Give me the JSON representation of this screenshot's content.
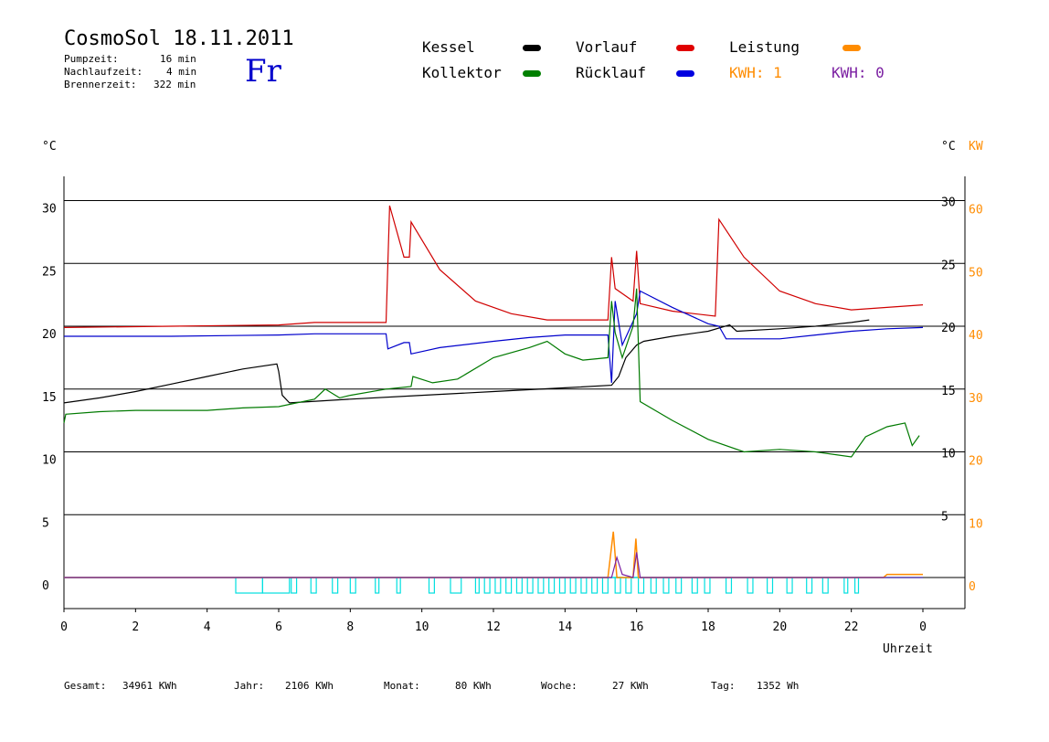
{
  "header": {
    "title": "CosmoSol 18.11.2011",
    "day": "Fr",
    "stats": [
      {
        "label": "Pumpzeit:",
        "value": "16 min"
      },
      {
        "label": "Nachlaufzeit:",
        "value": "4 min"
      },
      {
        "label": "Brennerzeit:",
        "value": "322 min"
      }
    ]
  },
  "legend": {
    "kessel": "Kessel",
    "vorlauf": "Vorlauf",
    "leistung": "Leistung",
    "kollektor": "Kollektor",
    "ruecklauf": "Rücklauf",
    "kwh1": "KWH: 1",
    "kwh2": "KWH: 0"
  },
  "colors": {
    "kessel": "#000000",
    "vorlauf": "#d00000",
    "ruecklauf": "#0000cc",
    "kollektor": "#007a00",
    "leistung": "#ff8c00",
    "kwh2": "#7b1fa2",
    "pump": "#00e0e0",
    "day": "#0000cc"
  },
  "footer": [
    {
      "label": "Gesamt:",
      "value": "34961 KWh"
    },
    {
      "label": "Jahr:",
      "value": "2106 KWh"
    },
    {
      "label": "Monat:",
      "value": "80 KWh"
    },
    {
      "label": "Woche:",
      "value": "27 KWh"
    },
    {
      "label": "Tag:",
      "value": "1352 Wh"
    }
  ],
  "chart_data": {
    "type": "line",
    "xlabel": "Uhrzeit",
    "ylabel_left": "°C",
    "ylabel_right": "°C",
    "ylabel_right2": "KW",
    "xlim": [
      0,
      24
    ],
    "ylim": [
      -2.5,
      32
    ],
    "x_ticks": [
      "0",
      "2",
      "4",
      "6",
      "8",
      "10",
      "12",
      "14",
      "16",
      "18",
      "20",
      "22",
      "0"
    ],
    "y_ticks_left": [
      "0",
      "5",
      "10",
      "15",
      "20",
      "25",
      "30"
    ],
    "y_ticks_right": [
      "5",
      "10",
      "15",
      "20",
      "25",
      "30"
    ],
    "y_ticks_kw": [
      "0",
      "10",
      "20",
      "30",
      "40",
      "50",
      "60"
    ],
    "grid_y": [
      0,
      5,
      10,
      15,
      20,
      25,
      30
    ],
    "series": [
      {
        "name": "Kessel",
        "color": "#000000",
        "points": [
          [
            0,
            13.9
          ],
          [
            1,
            14.3
          ],
          [
            2,
            14.8
          ],
          [
            3,
            15.4
          ],
          [
            4,
            16.0
          ],
          [
            5,
            16.6
          ],
          [
            5.95,
            17.0
          ],
          [
            6,
            16.4
          ],
          [
            6.1,
            14.5
          ],
          [
            6.3,
            13.9
          ],
          [
            8,
            14.2
          ],
          [
            10,
            14.5
          ],
          [
            12,
            14.8
          ],
          [
            14,
            15.1
          ],
          [
            15.3,
            15.3
          ],
          [
            15.5,
            16.0
          ],
          [
            15.7,
            17.5
          ],
          [
            16,
            18.5
          ],
          [
            16.2,
            18.8
          ],
          [
            17,
            19.2
          ],
          [
            18,
            19.6
          ],
          [
            18.6,
            20.1
          ],
          [
            18.8,
            19.6
          ],
          [
            20,
            19.8
          ],
          [
            21,
            20.0
          ],
          [
            22,
            20.3
          ],
          [
            22.5,
            20.5
          ]
        ]
      },
      {
        "name": "Vorlauf",
        "color": "#d00000",
        "points": [
          [
            0,
            19.9
          ],
          [
            3,
            20.0
          ],
          [
            6,
            20.1
          ],
          [
            7,
            20.3
          ],
          [
            9.0,
            20.3
          ],
          [
            9.1,
            29.6
          ],
          [
            9.5,
            25.5
          ],
          [
            9.65,
            25.5
          ],
          [
            9.7,
            28.3
          ],
          [
            10.5,
            24.5
          ],
          [
            11.5,
            22.0
          ],
          [
            12.5,
            21.0
          ],
          [
            13.5,
            20.5
          ],
          [
            15.2,
            20.5
          ],
          [
            15.3,
            25.5
          ],
          [
            15.4,
            23.0
          ],
          [
            15.9,
            22.0
          ],
          [
            16.0,
            26.0
          ],
          [
            16.1,
            21.8
          ],
          [
            17,
            21.2
          ],
          [
            18.2,
            20.8
          ],
          [
            18.3,
            28.5
          ],
          [
            19,
            25.5
          ],
          [
            20,
            22.8
          ],
          [
            21,
            21.8
          ],
          [
            22,
            21.3
          ],
          [
            23,
            21.5
          ],
          [
            24,
            21.7
          ]
        ]
      },
      {
        "name": "Rücklauf",
        "color": "#0000cc",
        "points": [
          [
            0,
            19.2
          ],
          [
            3,
            19.2
          ],
          [
            6,
            19.3
          ],
          [
            7,
            19.4
          ],
          [
            9.0,
            19.4
          ],
          [
            9.05,
            18.2
          ],
          [
            9.5,
            18.7
          ],
          [
            9.65,
            18.7
          ],
          [
            9.7,
            17.8
          ],
          [
            10.5,
            18.3
          ],
          [
            12,
            18.8
          ],
          [
            13,
            19.1
          ],
          [
            14,
            19.3
          ],
          [
            15.2,
            19.3
          ],
          [
            15.3,
            15.5
          ],
          [
            15.4,
            22.0
          ],
          [
            15.6,
            18.5
          ],
          [
            16.0,
            21.0
          ],
          [
            16.1,
            22.8
          ],
          [
            17,
            21.5
          ],
          [
            18,
            20.2
          ],
          [
            18.3,
            20.0
          ],
          [
            18.5,
            19.0
          ],
          [
            20,
            19.0
          ],
          [
            21,
            19.3
          ],
          [
            22,
            19.6
          ],
          [
            23,
            19.8
          ],
          [
            24,
            19.9
          ]
        ]
      },
      {
        "name": "Kollektor",
        "color": "#007a00",
        "points": [
          [
            0,
            12.3
          ],
          [
            0.05,
            13.0
          ],
          [
            1,
            13.2
          ],
          [
            2,
            13.3
          ],
          [
            3,
            13.3
          ],
          [
            4,
            13.3
          ],
          [
            5,
            13.5
          ],
          [
            6,
            13.6
          ],
          [
            7,
            14.2
          ],
          [
            7.3,
            15.0
          ],
          [
            7.7,
            14.3
          ],
          [
            8,
            14.5
          ],
          [
            9,
            15.0
          ],
          [
            9.7,
            15.2
          ],
          [
            9.75,
            16.0
          ],
          [
            10.3,
            15.5
          ],
          [
            11,
            15.8
          ],
          [
            12,
            17.5
          ],
          [
            13,
            18.3
          ],
          [
            13.5,
            18.8
          ],
          [
            14,
            17.8
          ],
          [
            14.5,
            17.3
          ],
          [
            15.2,
            17.5
          ],
          [
            15.3,
            22.0
          ],
          [
            15.4,
            19.5
          ],
          [
            15.6,
            17.5
          ],
          [
            15.9,
            20.0
          ],
          [
            16.0,
            23.0
          ],
          [
            16.1,
            14.0
          ],
          [
            17,
            12.5
          ],
          [
            18,
            11.0
          ],
          [
            19,
            10.0
          ],
          [
            20,
            10.2
          ],
          [
            21,
            10.0
          ],
          [
            22,
            9.6
          ],
          [
            22.4,
            11.2
          ],
          [
            23,
            12.0
          ],
          [
            23.5,
            12.3
          ],
          [
            23.7,
            10.5
          ],
          [
            23.9,
            11.3
          ]
        ]
      }
    ],
    "leistung_kw": [
      [
        0,
        0
      ],
      [
        15.2,
        0
      ],
      [
        15.35,
        7.3
      ],
      [
        15.45,
        0
      ],
      [
        15.9,
        0
      ],
      [
        15.98,
        6.2
      ],
      [
        16.05,
        0
      ],
      [
        22.9,
        0
      ],
      [
        23.0,
        0.5
      ],
      [
        24,
        0.5
      ]
    ],
    "kwh_kw": [
      [
        0,
        0
      ],
      [
        15.3,
        0
      ],
      [
        15.45,
        3.2
      ],
      [
        15.6,
        0.5
      ],
      [
        15.9,
        0
      ],
      [
        16.0,
        4.0
      ],
      [
        16.1,
        0
      ],
      [
        24,
        0
      ]
    ],
    "pump_intervals": [
      [
        4.8,
        5.55
      ],
      [
        5.55,
        6.3
      ],
      [
        6.35,
        6.5
      ],
      [
        6.9,
        7.05
      ],
      [
        7.5,
        7.65
      ],
      [
        8.0,
        8.15
      ],
      [
        8.7,
        8.8
      ],
      [
        9.3,
        9.4
      ],
      [
        10.2,
        10.35
      ],
      [
        10.8,
        11.1
      ],
      [
        11.5,
        11.6
      ],
      [
        11.75,
        11.9
      ],
      [
        12.05,
        12.2
      ],
      [
        12.35,
        12.5
      ],
      [
        12.65,
        12.8
      ],
      [
        12.95,
        13.1
      ],
      [
        13.25,
        13.4
      ],
      [
        13.55,
        13.7
      ],
      [
        13.85,
        14.0
      ],
      [
        14.15,
        14.3
      ],
      [
        14.45,
        14.6
      ],
      [
        14.75,
        14.9
      ],
      [
        15.05,
        15.2
      ],
      [
        15.4,
        15.55
      ],
      [
        15.7,
        15.85
      ],
      [
        16.05,
        16.2
      ],
      [
        16.4,
        16.55
      ],
      [
        16.75,
        16.9
      ],
      [
        17.1,
        17.25
      ],
      [
        17.55,
        17.7
      ],
      [
        17.9,
        18.05
      ],
      [
        18.5,
        18.65
      ],
      [
        19.1,
        19.25
      ],
      [
        19.65,
        19.8
      ],
      [
        20.2,
        20.35
      ],
      [
        20.75,
        20.9
      ],
      [
        21.2,
        21.35
      ],
      [
        21.8,
        21.9
      ],
      [
        22.1,
        22.2
      ]
    ],
    "legend_position": "top"
  }
}
